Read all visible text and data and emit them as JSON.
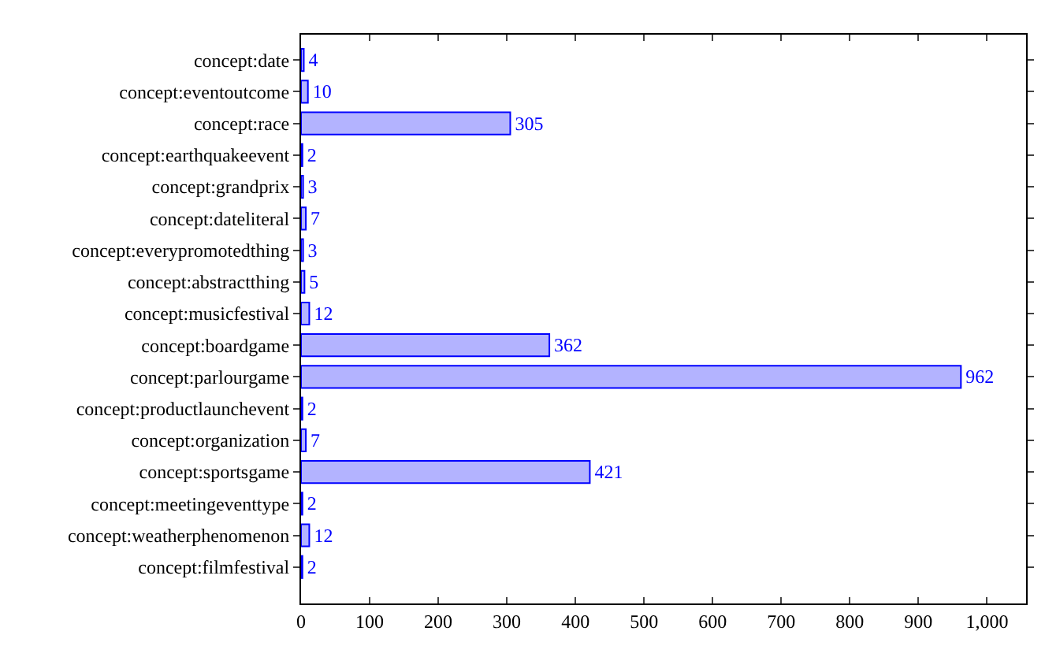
{
  "chart_data": {
    "type": "bar",
    "orientation": "horizontal",
    "categories": [
      "concept:date",
      "concept:eventoutcome",
      "concept:race",
      "concept:earthquakeevent",
      "concept:grandprix",
      "concept:dateliteral",
      "concept:everypromotedthing",
      "concept:abstractthing",
      "concept:musicfestival",
      "concept:boardgame",
      "concept:parlourgame",
      "concept:productlaunchevent",
      "concept:organization",
      "concept:sportsgame",
      "concept:meetingeventtype",
      "concept:weatherphenomenon",
      "concept:filmfestival"
    ],
    "values": [
      4,
      10,
      305,
      2,
      3,
      7,
      3,
      5,
      12,
      362,
      962,
      2,
      7,
      421,
      2,
      12,
      2
    ],
    "color": "#b3b3ff",
    "xlim": [
      0,
      1057
    ],
    "xticks": [
      0,
      100,
      200,
      300,
      400,
      500,
      600,
      700,
      800,
      900,
      {
        "value": 1000,
        "label": "1,000"
      }
    ],
    "data_labels": true,
    "grid": false,
    "legend": false
  }
}
